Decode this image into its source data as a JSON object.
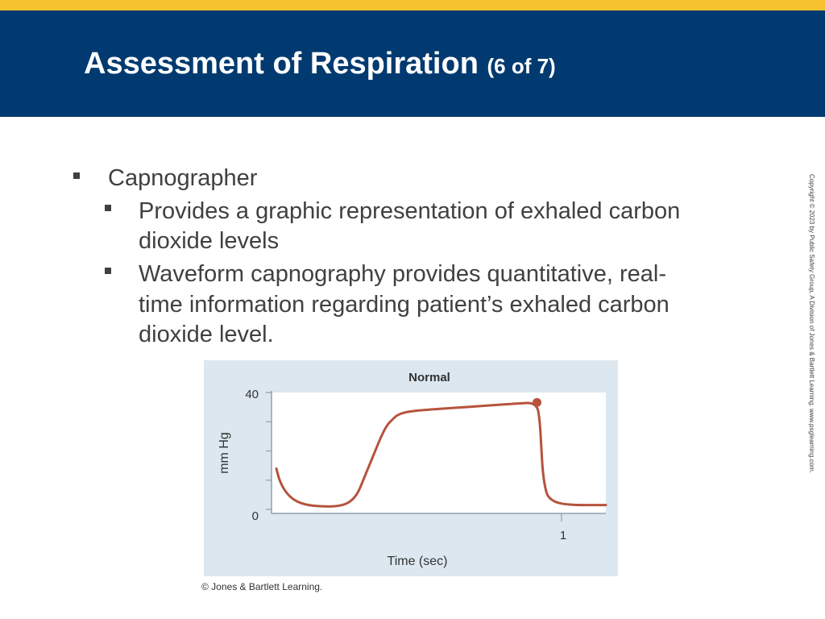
{
  "colors": {
    "stripe": "#f6c32e",
    "header": "#003a70",
    "chart_bg": "#dce7ef",
    "plot_bg": "#ffffff",
    "waveform": "#b5533c"
  },
  "slide": {
    "title": "Assessment of Respiration",
    "title_sub": "(6 of 7)"
  },
  "bullets": {
    "level1": "Capnographer",
    "sub1_line1": "Provides a graphic representation of exhaled carbon",
    "sub1_line2": "dioxide levels",
    "sub2_line1": "Waveform capnography provides quantitative, real-",
    "sub2_line2": "time information regarding patient’s exhaled carbon",
    "sub2_line3": "dioxide level."
  },
  "side_copyright": "Copyright © 2023 by Public Safety Group, A Division of Jones & Bartlett Learning. www.psglearning.com.",
  "figure_credit": "© Jones & Bartlett Learning.",
  "chart_data": {
    "type": "line",
    "title": "Normal",
    "xlabel": "Time (sec)",
    "ylabel": "mm Hg",
    "y_tick_labels": [
      "0",
      "40"
    ],
    "x_tick_labels": [
      "1"
    ],
    "xlim": [
      0,
      1.1
    ],
    "ylim": [
      0,
      40
    ],
    "series": [
      {
        "x": [
          0.0,
          0.01,
          0.03,
          0.06,
          0.1,
          0.15,
          0.2,
          0.24,
          0.27,
          0.29,
          0.31,
          0.33,
          0.35,
          0.37,
          0.39,
          0.4,
          0.42,
          0.45,
          0.5,
          0.6,
          0.7,
          0.8,
          0.87,
          0.88,
          0.885,
          0.89,
          0.9,
          0.91,
          0.93,
          0.96,
          1.0,
          1.05,
          1.1
        ],
        "y": [
          14,
          10,
          6,
          3,
          1.5,
          1,
          1,
          2,
          5,
          10,
          15,
          20,
          25,
          29,
          31,
          32,
          33,
          33.6,
          34.1,
          34.8,
          35.5,
          36.2,
          36.6,
          30,
          20,
          12,
          6,
          4,
          2.5,
          1.8,
          1.5,
          1.5,
          1.5
        ]
      }
    ],
    "marker": {
      "x": 0.87,
      "y": 36.6
    }
  }
}
